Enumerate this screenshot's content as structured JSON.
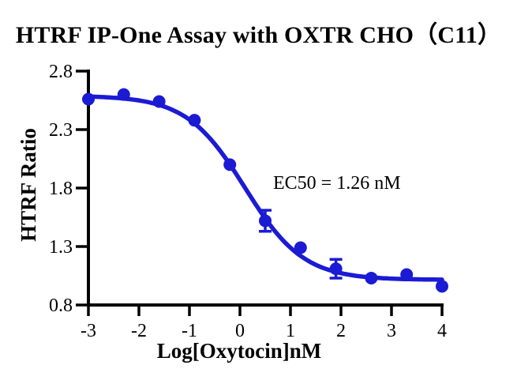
{
  "title": "HTRF IP-One Assay with OXTR CHO（C11）",
  "annotation": "EC50 = 1.26 nM",
  "colors": {
    "curve_blue": "#1b1bd4",
    "axis_black": "#000000",
    "background": "#ffffff"
  },
  "chart_data": {
    "type": "scatter",
    "title": "HTRF IP-One Assay with OXTR CHO（C11）",
    "xlabel": "Log[Oxytocin]nM",
    "ylabel": "HTRF Ratio",
    "xlim": [
      -3,
      4
    ],
    "ylim": [
      0.8,
      2.8
    ],
    "x_ticks": [
      "-3",
      "-2",
      "-1",
      "0",
      "1",
      "2",
      "3",
      "4"
    ],
    "x_tick_values": [
      -3,
      -2,
      -1,
      0,
      1,
      2,
      3,
      4
    ],
    "y_ticks": [
      "0.8",
      "1.3",
      "1.8",
      "2.3",
      "2.8"
    ],
    "y_tick_values": [
      0.8,
      1.3,
      1.8,
      2.3,
      2.8
    ],
    "grid": false,
    "legend": "none",
    "annotation": "EC50 = 1.26 nM",
    "ec50_nM": 1.26,
    "series": [
      {
        "name": "OXTR CHO (C11)",
        "marker": "circle",
        "color": "#1b1bd4",
        "x": [
          -3.0,
          -2.3,
          -1.6,
          -0.9,
          -0.2,
          0.5,
          1.2,
          1.9,
          2.6,
          3.3,
          4.0
        ],
        "y": [
          2.56,
          2.6,
          2.54,
          2.38,
          2.0,
          1.52,
          1.29,
          1.11,
          1.03,
          1.06,
          0.96
        ],
        "yerr": [
          0,
          0,
          0,
          0,
          0,
          0.09,
          0,
          0.08,
          0,
          0,
          0
        ]
      }
    ],
    "fit_curve": {
      "model": "4PL",
      "top": 2.59,
      "bottom": 1.015,
      "log_ec50": 0.1,
      "hill": 0.75,
      "direction": "descending"
    }
  }
}
